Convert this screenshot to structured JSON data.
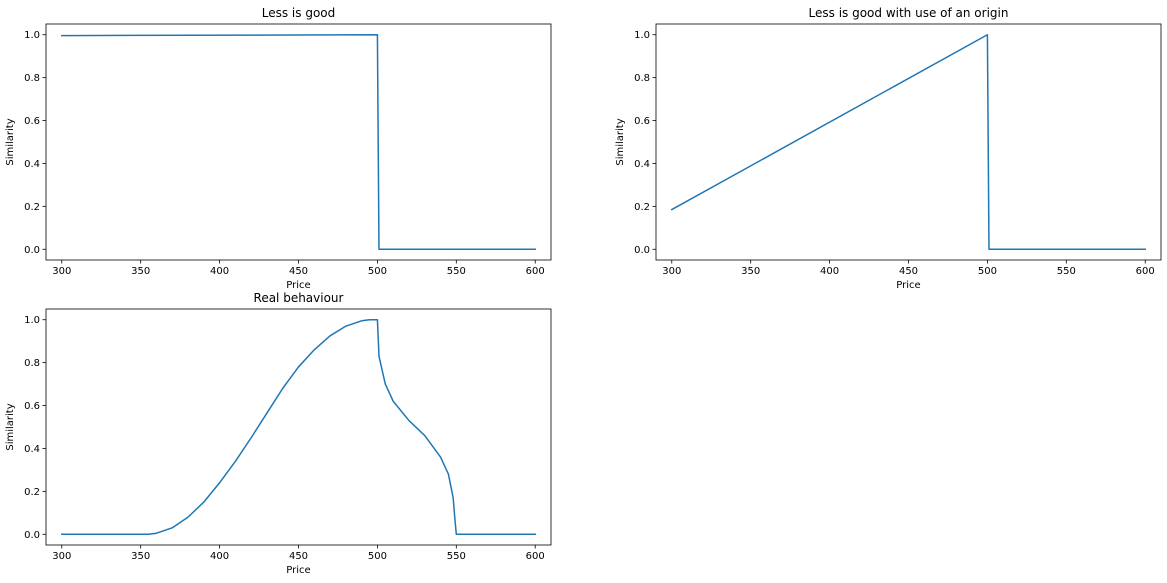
{
  "chart_data": [
    {
      "type": "line",
      "title": "Less is good",
      "xlabel": "Price",
      "ylabel": "Similarity",
      "xlim": [
        290,
        610
      ],
      "ylim": [
        -0.05,
        1.05
      ],
      "xticks": [
        300,
        350,
        400,
        450,
        500,
        550,
        600
      ],
      "yticks": [
        0.0,
        0.2,
        0.4,
        0.6,
        0.8,
        1.0
      ],
      "xtick_labels": [
        "300",
        "350",
        "400",
        "450",
        "500",
        "550",
        "600"
      ],
      "ytick_labels": [
        "0.0",
        "0.2",
        "0.4",
        "0.6",
        "0.8",
        "1.0"
      ],
      "grid": false,
      "color": "#1f77b4",
      "series": [
        {
          "x": [
            300,
            500,
            501,
            600
          ],
          "y": [
            0.996,
            1.0,
            0.0,
            0.0
          ]
        }
      ]
    },
    {
      "type": "line",
      "title": "Less is good with use of an origin",
      "xlabel": "Price",
      "ylabel": "Similarity",
      "xlim": [
        290,
        610
      ],
      "ylim": [
        -0.05,
        1.05
      ],
      "xticks": [
        300,
        350,
        400,
        450,
        500,
        550,
        600
      ],
      "yticks": [
        0.0,
        0.2,
        0.4,
        0.6,
        0.8,
        1.0
      ],
      "xtick_labels": [
        "300",
        "350",
        "400",
        "450",
        "500",
        "550",
        "600"
      ],
      "ytick_labels": [
        "0.0",
        "0.2",
        "0.4",
        "0.6",
        "0.8",
        "1.0"
      ],
      "grid": false,
      "color": "#1f77b4",
      "series": [
        {
          "x": [
            300,
            500,
            501,
            600
          ],
          "y": [
            0.185,
            1.0,
            0.0,
            0.0
          ]
        }
      ]
    },
    {
      "type": "line",
      "title": "Real behaviour",
      "xlabel": "Price",
      "ylabel": "Similarity",
      "xlim": [
        290,
        610
      ],
      "ylim": [
        -0.05,
        1.05
      ],
      "xticks": [
        300,
        350,
        400,
        450,
        500,
        550,
        600
      ],
      "yticks": [
        0.0,
        0.2,
        0.4,
        0.6,
        0.8,
        1.0
      ],
      "xtick_labels": [
        "300",
        "350",
        "400",
        "450",
        "500",
        "550",
        "600"
      ],
      "ytick_labels": [
        "0.0",
        "0.2",
        "0.4",
        "0.6",
        "0.8",
        "1.0"
      ],
      "grid": false,
      "color": "#1f77b4",
      "series": [
        {
          "x": [
            300,
            355,
            360,
            370,
            380,
            390,
            400,
            410,
            420,
            430,
            440,
            450,
            460,
            470,
            480,
            490,
            495,
            500,
            501,
            505,
            510,
            520,
            530,
            540,
            545,
            548,
            549,
            550,
            600
          ],
          "y": [
            0.0,
            0.0,
            0.005,
            0.03,
            0.08,
            0.15,
            0.24,
            0.34,
            0.45,
            0.565,
            0.68,
            0.78,
            0.86,
            0.925,
            0.97,
            0.995,
            1.0,
            1.0,
            0.83,
            0.7,
            0.62,
            0.53,
            0.46,
            0.36,
            0.28,
            0.17,
            0.08,
            0.0,
            0.0
          ]
        }
      ]
    }
  ]
}
